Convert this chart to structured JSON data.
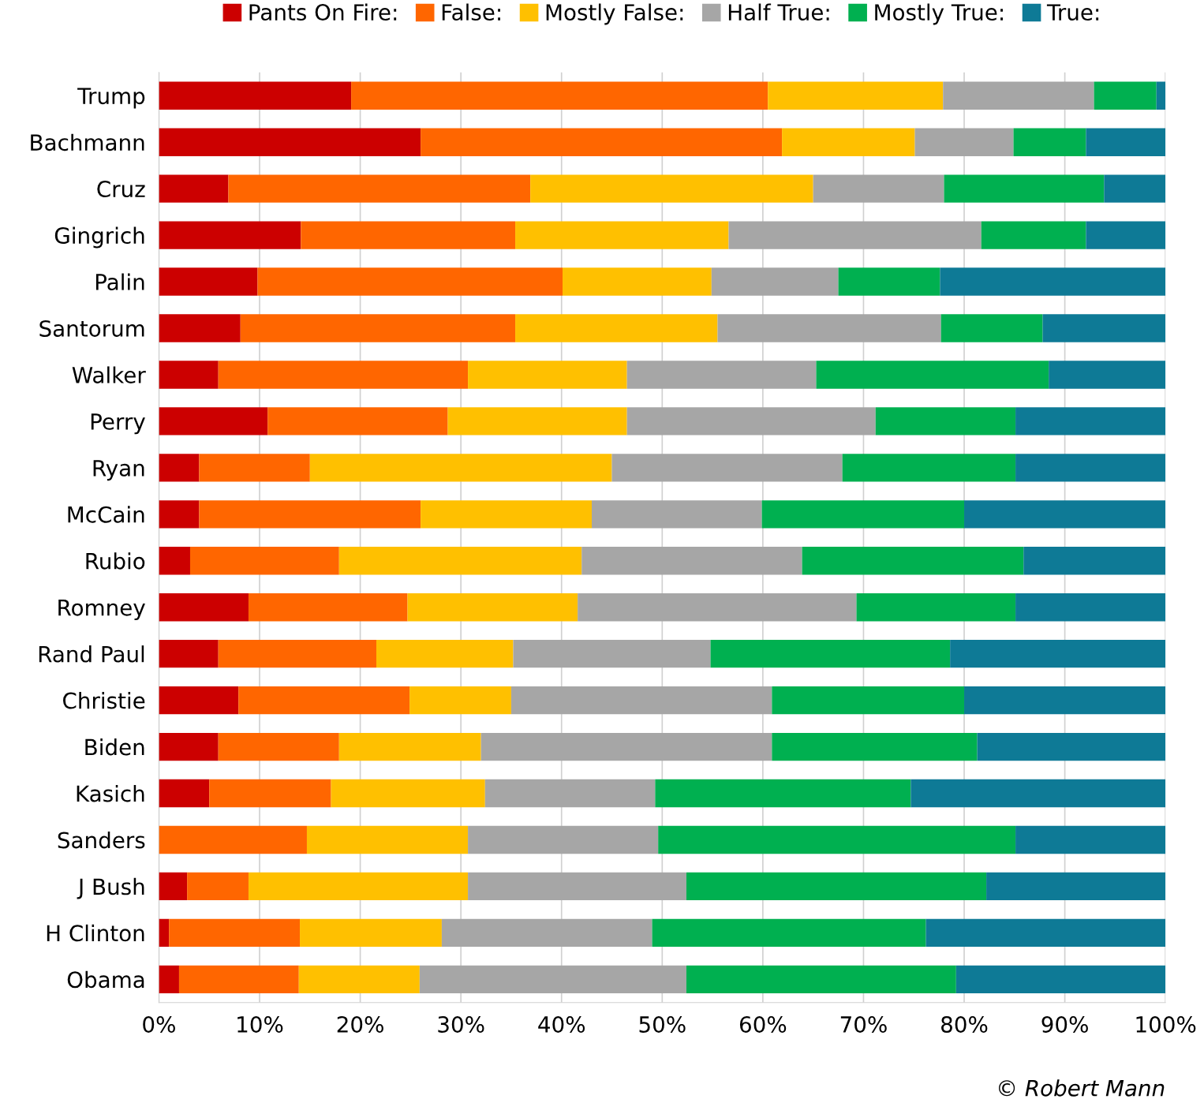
{
  "chart_data": {
    "type": "bar",
    "orientation": "horizontal",
    "stacked": true,
    "categories": [
      "Trump",
      "Bachmann",
      "Cruz",
      "Gingrich",
      "Palin",
      "Santorum",
      "Walker",
      "Perry",
      "Ryan",
      "McCain",
      "Rubio",
      "Romney",
      "Rand Paul",
      "Christie",
      "Biden",
      "Kasich",
      "Sanders",
      "J Bush",
      "H Clinton",
      "Obama"
    ],
    "series": [
      {
        "name": "Pants On Fire:",
        "color": "#cc0000",
        "values": [
          19.1,
          26.0,
          6.9,
          14.1,
          9.8,
          8.1,
          5.9,
          10.8,
          4.0,
          4.0,
          3.1,
          8.9,
          5.9,
          7.9,
          5.9,
          5.0,
          0,
          2.8,
          1.0,
          2.0
        ]
      },
      {
        "name": "False:",
        "color": "#ff6600",
        "values": [
          41.4,
          35.9,
          30.0,
          21.3,
          30.3,
          27.3,
          24.8,
          17.9,
          11.0,
          22.0,
          14.8,
          15.8,
          15.7,
          17.0,
          12.0,
          12.1,
          14.7,
          6.1,
          13.0,
          11.9
        ]
      },
      {
        "name": "Mostly False:",
        "color": "#ffc000",
        "values": [
          17.4,
          13.2,
          28.1,
          21.2,
          14.8,
          20.1,
          15.8,
          17.8,
          30.0,
          17.0,
          24.1,
          16.9,
          13.6,
          10.1,
          14.1,
          15.3,
          16.0,
          21.8,
          14.1,
          12.0
        ]
      },
      {
        "name": "Half True:",
        "color": "#a6a6a6",
        "values": [
          15.0,
          9.8,
          13.0,
          25.1,
          12.6,
          22.2,
          18.8,
          24.7,
          22.9,
          16.9,
          21.9,
          27.7,
          19.6,
          25.9,
          28.9,
          16.9,
          18.9,
          21.7,
          20.9,
          26.5
        ]
      },
      {
        "name": "Mostly True:",
        "color": "#00b050",
        "values": [
          6.2,
          7.2,
          15.9,
          10.4,
          10.1,
          10.1,
          23.1,
          13.9,
          17.2,
          20.1,
          22.0,
          15.8,
          23.8,
          19.1,
          20.4,
          25.4,
          35.5,
          29.8,
          27.2,
          26.8
        ]
      },
      {
        "name": "True:",
        "color": "#0e7a96",
        "values": [
          0.9,
          7.9,
          6.1,
          7.9,
          22.4,
          12.2,
          11.6,
          14.9,
          14.9,
          20.0,
          14.1,
          14.9,
          21.4,
          20.0,
          18.7,
          25.3,
          14.9,
          17.8,
          23.8,
          20.8
        ]
      }
    ],
    "xlim": [
      0,
      100
    ],
    "xticks": [
      {
        "value": 0,
        "label": "0%"
      },
      {
        "value": 10,
        "label": "10%"
      },
      {
        "value": 20,
        "label": "20%"
      },
      {
        "value": 30,
        "label": "30%"
      },
      {
        "value": 40,
        "label": "40%"
      },
      {
        "value": 50,
        "label": "50%"
      },
      {
        "value": 60,
        "label": "60%"
      },
      {
        "value": 70,
        "label": "70%"
      },
      {
        "value": 80,
        "label": "80%"
      },
      {
        "value": 90,
        "label": "90%"
      },
      {
        "value": 100,
        "label": "100%"
      }
    ],
    "grid": "x",
    "legend": "top",
    "annotations": [
      "© Robert Mann"
    ]
  }
}
